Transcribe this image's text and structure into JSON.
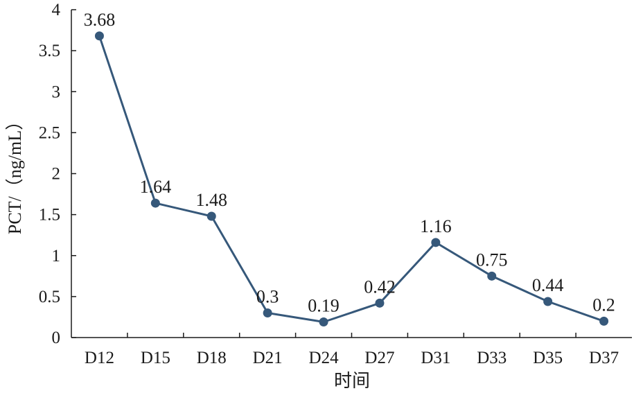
{
  "chart_data": {
    "type": "line",
    "title": "",
    "xlabel": "时间",
    "ylabel": "PCT/（ng/mL）",
    "categories": [
      "D12",
      "D15",
      "D18",
      "D21",
      "D24",
      "D27",
      "D31",
      "D33",
      "D35",
      "D37"
    ],
    "series": [
      {
        "values": [
          3.68,
          1.64,
          1.48,
          0.3,
          0.19,
          0.42,
          1.16,
          0.75,
          0.44,
          0.2
        ]
      }
    ],
    "data_labels": [
      "3.68",
      "1.64",
      "1.48",
      "0.3",
      "0.19",
      "0.42",
      "1.16",
      "0.75",
      "0.44",
      "0.2"
    ],
    "ylim": [
      0,
      4
    ],
    "yticks": [
      "0",
      "0.5",
      "1",
      "1.5",
      "2",
      "2.5",
      "3",
      "3.5",
      "4"
    ],
    "grid": false,
    "legend": "none",
    "line_color": "#36587a",
    "marker_color": "#36587a"
  }
}
